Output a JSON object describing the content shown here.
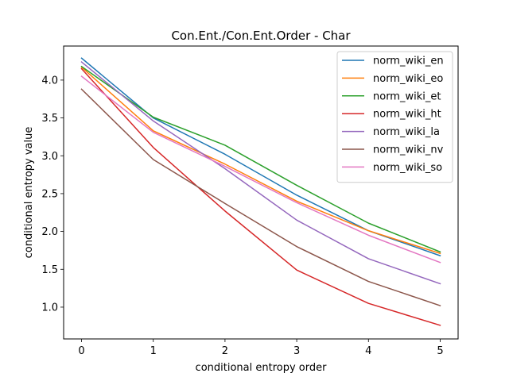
{
  "chart_data": {
    "type": "line",
    "title": "Con.Ent./Con.Ent.Order - Char",
    "xlabel": "conditional entropy order",
    "ylabel": "conditional entropy value",
    "x": [
      0,
      1,
      2,
      3,
      4,
      5
    ],
    "xlim": [
      -0.25,
      5.25
    ],
    "ylim": [
      0.58,
      4.45
    ],
    "xticks": [
      0,
      1,
      2,
      3,
      4,
      5
    ],
    "yticks": [
      1.0,
      1.5,
      2.0,
      2.5,
      3.0,
      3.5,
      4.0
    ],
    "grid": false,
    "legend_position": "top-right",
    "series": [
      {
        "name": "norm_wiki_en",
        "color": "#1f77b4",
        "values": [
          4.29,
          3.5,
          3.02,
          2.48,
          2.01,
          1.68
        ]
      },
      {
        "name": "norm_wiki_eo",
        "color": "#ff7f0e",
        "values": [
          4.17,
          3.33,
          2.89,
          2.4,
          2.01,
          1.71
        ]
      },
      {
        "name": "norm_wiki_et",
        "color": "#2ca02c",
        "values": [
          4.18,
          3.51,
          3.14,
          2.61,
          2.11,
          1.73
        ]
      },
      {
        "name": "norm_wiki_ht",
        "color": "#d62728",
        "values": [
          4.15,
          3.11,
          2.27,
          1.49,
          1.05,
          0.76
        ]
      },
      {
        "name": "norm_wiki_la",
        "color": "#9467bd",
        "values": [
          4.24,
          3.46,
          2.83,
          2.15,
          1.64,
          1.31
        ]
      },
      {
        "name": "norm_wiki_nv",
        "color": "#8c564b",
        "values": [
          3.88,
          2.95,
          2.37,
          1.8,
          1.34,
          1.02
        ]
      },
      {
        "name": "norm_wiki_so",
        "color": "#e377c2",
        "values": [
          4.05,
          3.31,
          2.86,
          2.38,
          1.95,
          1.59
        ]
      }
    ]
  }
}
